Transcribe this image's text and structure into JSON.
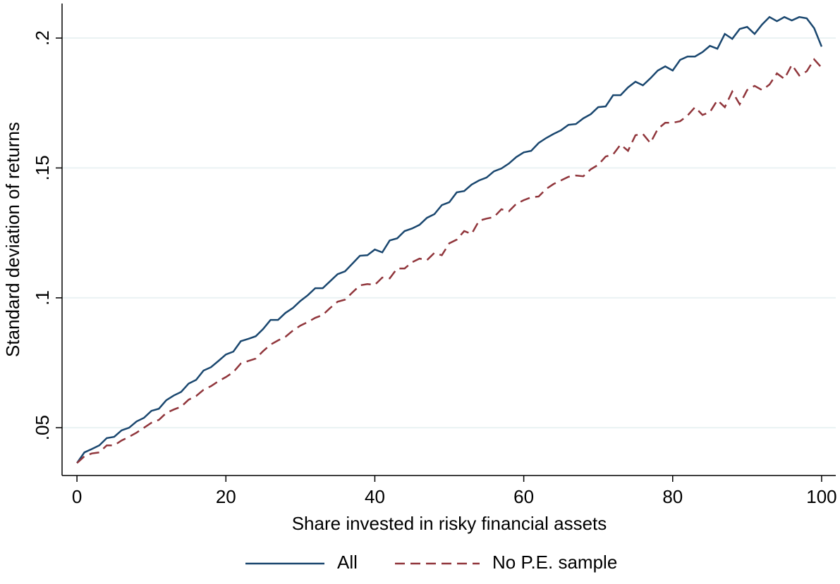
{
  "chart_data": {
    "type": "line",
    "xlabel": "Share invested in risky financial assets",
    "ylabel": "Standard deviation of returns",
    "x": [
      0,
      1,
      2,
      3,
      4,
      5,
      6,
      7,
      8,
      9,
      10,
      11,
      12,
      13,
      14,
      15,
      16,
      17,
      18,
      19,
      20,
      21,
      22,
      23,
      24,
      25,
      26,
      27,
      28,
      29,
      30,
      31,
      32,
      33,
      34,
      35,
      36,
      37,
      38,
      39,
      40,
      41,
      42,
      43,
      44,
      45,
      46,
      47,
      48,
      49,
      50,
      51,
      52,
      53,
      54,
      55,
      56,
      57,
      58,
      59,
      60,
      61,
      62,
      63,
      64,
      65,
      66,
      67,
      68,
      69,
      70,
      71,
      72,
      73,
      74,
      75,
      76,
      77,
      78,
      79,
      80,
      81,
      82,
      83,
      84,
      85,
      86,
      87,
      88,
      89,
      90,
      91,
      92,
      93,
      94,
      95,
      96,
      97,
      98,
      99,
      100
    ],
    "series": [
      {
        "name": "All",
        "color": "#1a476f",
        "dash": false,
        "values": [
          0.0364,
          0.0405,
          0.0418,
          0.0432,
          0.046,
          0.0465,
          0.049,
          0.05,
          0.0524,
          0.0538,
          0.0565,
          0.0573,
          0.0606,
          0.0624,
          0.0638,
          0.067,
          0.0684,
          0.072,
          0.0733,
          0.0757,
          0.0782,
          0.0793,
          0.0833,
          0.0842,
          0.0852,
          0.088,
          0.0915,
          0.0915,
          0.0942,
          0.0961,
          0.0988,
          0.101,
          0.1037,
          0.1037,
          0.1064,
          0.1091,
          0.1102,
          0.1132,
          0.1162,
          0.1164,
          0.1186,
          0.1175,
          0.1221,
          0.1229,
          0.1257,
          0.1267,
          0.1281,
          0.1308,
          0.1322,
          0.1357,
          0.1368,
          0.1406,
          0.1411,
          0.1436,
          0.1452,
          0.1463,
          0.1487,
          0.1498,
          0.1517,
          0.1542,
          0.156,
          0.1566,
          0.1596,
          0.1615,
          0.1631,
          0.1645,
          0.1666,
          0.1669,
          0.1691,
          0.1707,
          0.1734,
          0.1737,
          0.178,
          0.178,
          0.181,
          0.1832,
          0.1818,
          0.1845,
          0.1875,
          0.1891,
          0.1875,
          0.1916,
          0.1929,
          0.1929,
          0.1946,
          0.197,
          0.1959,
          0.2016,
          0.1997,
          0.2035,
          0.2043,
          0.2016,
          0.2052,
          0.2081,
          0.2065,
          0.2081,
          0.2068,
          0.2081,
          0.2076,
          0.2038,
          0.1967
        ]
      },
      {
        "name": "No P.E. sample",
        "color": "#90353b",
        "dash": true,
        "values": [
          0.0364,
          0.039,
          0.0401,
          0.0405,
          0.0432,
          0.0432,
          0.0451,
          0.0465,
          0.0481,
          0.05,
          0.0519,
          0.053,
          0.0557,
          0.057,
          0.0581,
          0.0608,
          0.0622,
          0.0646,
          0.066,
          0.0679,
          0.0695,
          0.0714,
          0.0747,
          0.0757,
          0.0766,
          0.0795,
          0.082,
          0.0836,
          0.085,
          0.0874,
          0.0893,
          0.0907,
          0.0923,
          0.0934,
          0.0961,
          0.0985,
          0.0993,
          0.1021,
          0.1048,
          0.1053,
          0.105,
          0.1078,
          0.1075,
          0.1113,
          0.1113,
          0.1137,
          0.1151,
          0.1145,
          0.1173,
          0.1164,
          0.121,
          0.1224,
          0.1257,
          0.1246,
          0.1297,
          0.1305,
          0.1311,
          0.1341,
          0.1333,
          0.1362,
          0.1376,
          0.1387,
          0.139,
          0.1419,
          0.1438,
          0.1452,
          0.1466,
          0.1471,
          0.1468,
          0.1495,
          0.1512,
          0.1544,
          0.1552,
          0.159,
          0.1566,
          0.1626,
          0.1631,
          0.1596,
          0.165,
          0.1674,
          0.1674,
          0.168,
          0.1702,
          0.1734,
          0.1704,
          0.1715,
          0.1761,
          0.1734,
          0.1794,
          0.1745,
          0.18,
          0.1816,
          0.18,
          0.1821,
          0.1864,
          0.1843,
          0.1897,
          0.1856,
          0.1872,
          0.1918,
          0.1886
        ]
      }
    ],
    "xlim": [
      -2,
      101.9
    ],
    "ylim": [
      0.0316,
      0.2133
    ],
    "xticks": [
      0,
      20,
      40,
      60,
      80,
      100
    ],
    "yticks": [
      {
        "value": 0.05,
        "label": ".05"
      },
      {
        "value": 0.1,
        "label": ".1"
      },
      {
        "value": 0.15,
        "label": ".15"
      },
      {
        "value": 0.2,
        "label": ".2"
      }
    ],
    "grid": true,
    "legend": "bottom"
  }
}
